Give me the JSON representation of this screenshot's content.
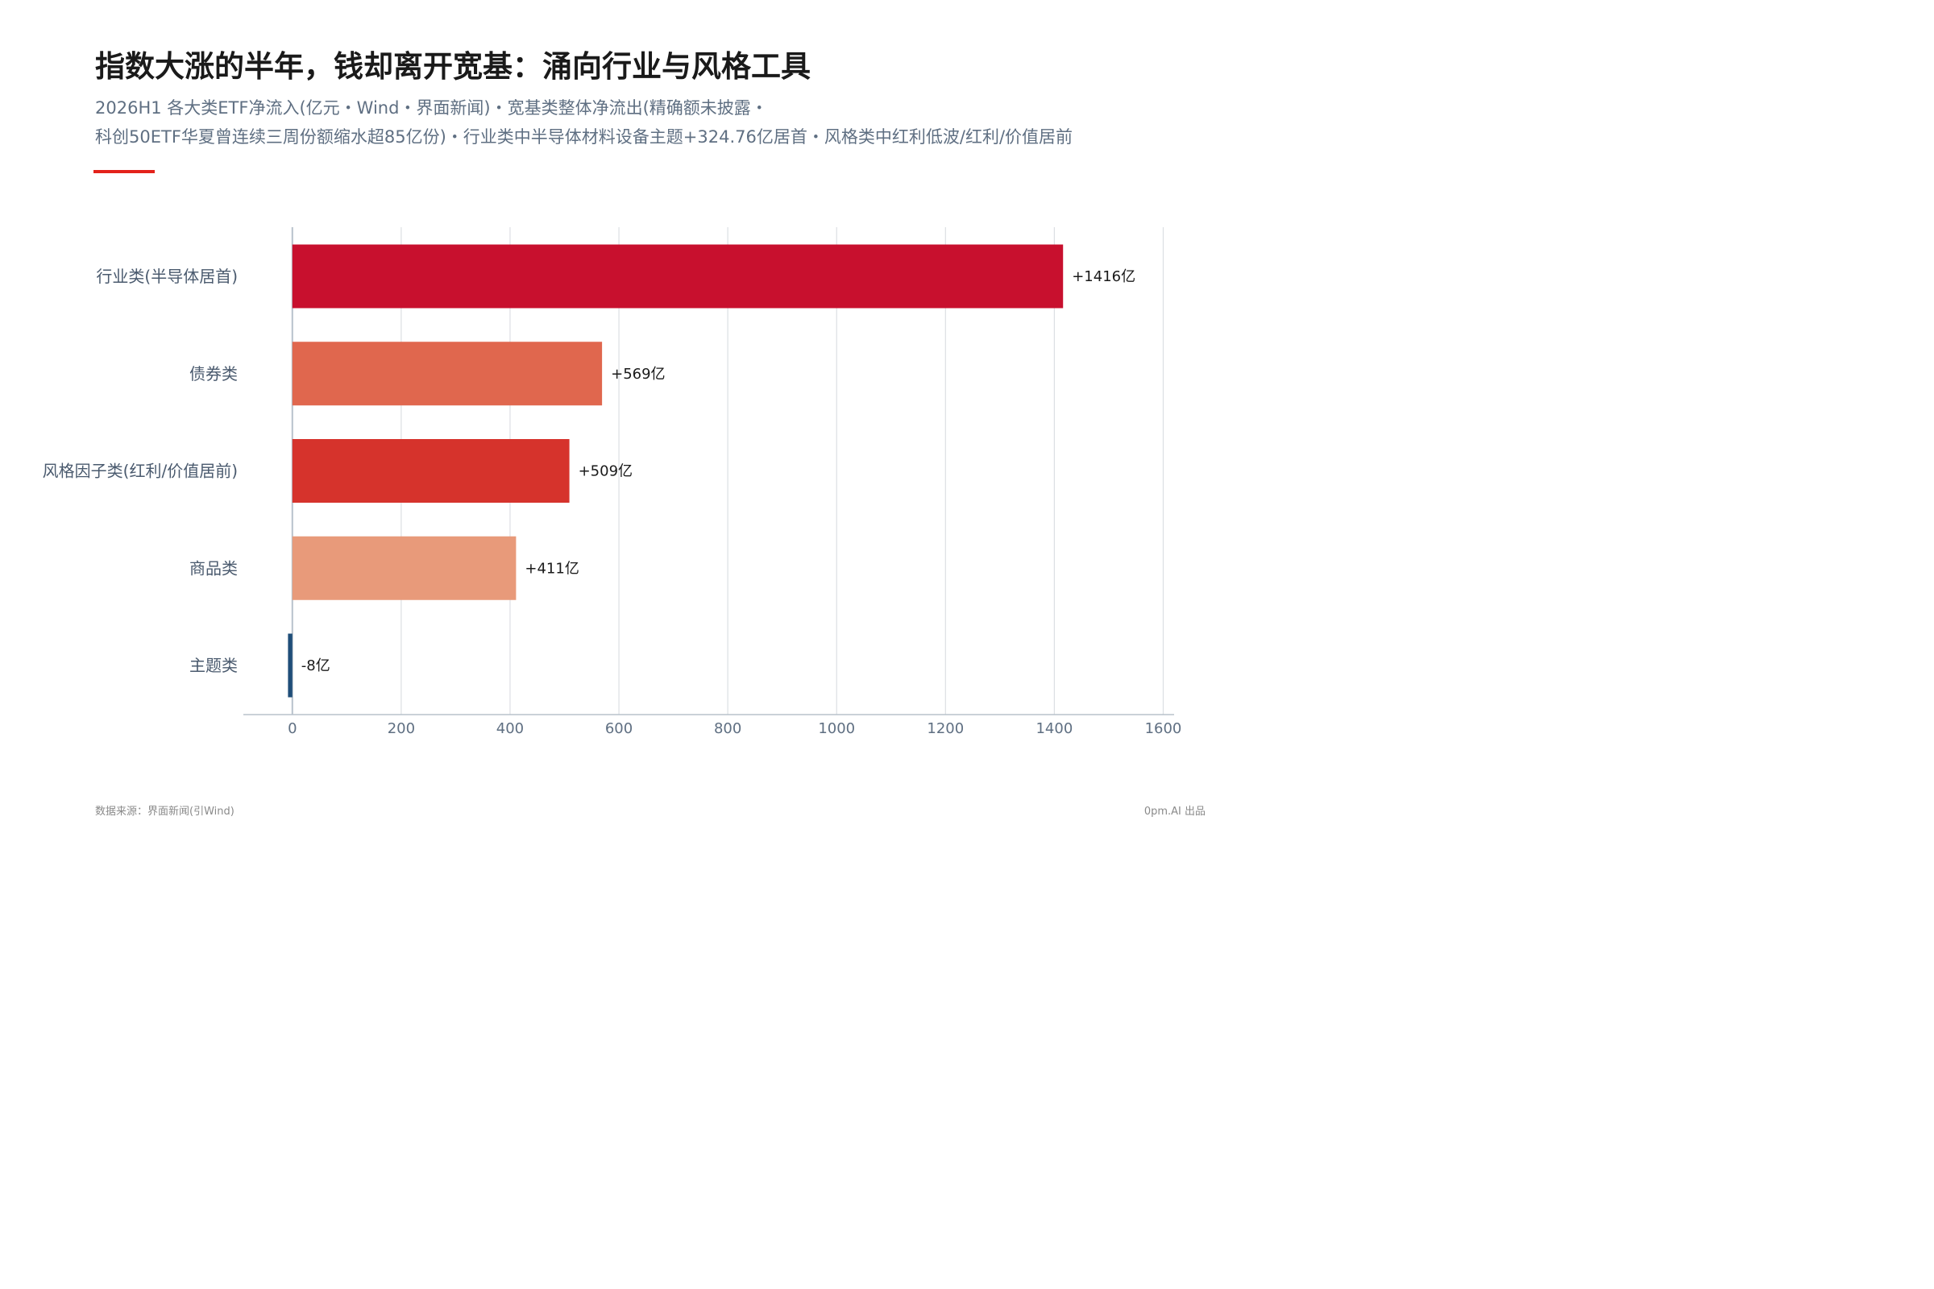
{
  "header": {
    "title": "指数大涨的半年，钱却离开宽基：涌向行业与风格工具",
    "subtitle_line1": "2026H1 各大类ETF净流入(亿元・Wind・界面新闻)・宽基类整体净流出(精确额未披露・",
    "subtitle_line2": "科创50ETF华夏曾连续三周份额缩水超85亿份)・行业类中半导体材料设备主题+324.76亿居首・风格类中红利低波/红利/价值居前"
  },
  "colors": {
    "accent": "#e3221b",
    "grid": "#dcdfe3",
    "axis": "#b8c2cc",
    "tick_text": "#5f6f82",
    "label_text": "#4a5a6e"
  },
  "chart_data": {
    "type": "bar",
    "orientation": "horizontal",
    "categories": [
      "行业类(半导体居首)",
      "债券类",
      "风格因子类(红利/价值居前)",
      "商品类",
      "主题类"
    ],
    "values": [
      1416,
      569,
      509,
      411,
      -8
    ],
    "data_labels": [
      "+1416亿",
      "+569亿",
      "+509亿",
      "+411亿",
      "-8亿"
    ],
    "bar_colors": [
      "#c8102e",
      "#e0674e",
      "#d6332c",
      "#e89a7a",
      "#1f4e79"
    ],
    "xlim": [
      -90,
      1620
    ],
    "x_ticks": [
      0,
      200,
      400,
      600,
      800,
      1000,
      1200,
      1400,
      1600
    ],
    "x_tick_labels": [
      "0",
      "200",
      "400",
      "600",
      "800",
      "1000",
      "1200",
      "1400",
      "1600"
    ],
    "grid": true,
    "xlabel": "",
    "ylabel": ""
  },
  "footer": {
    "source": "数据来源：界面新闻(引Wind)",
    "credit": "0pm.AI 出品"
  }
}
